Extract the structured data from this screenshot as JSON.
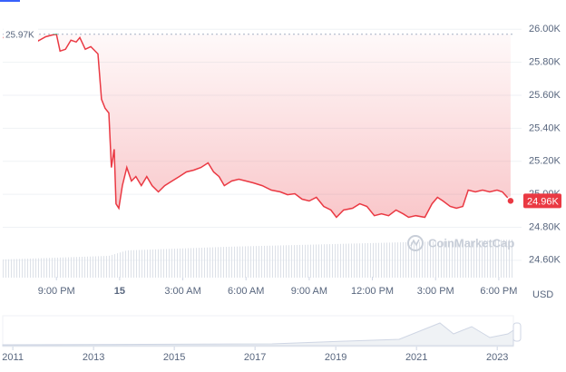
{
  "chart_data": {
    "type": "line",
    "color": "#ea3943",
    "up_color": "#16c784",
    "x": [
      18.47,
      19.2,
      19.97,
      20.14,
      20.49,
      20.79,
      21.0,
      21.17,
      21.43,
      21.69,
      21.94,
      22.11,
      22.37,
      22.63,
      22.97,
      23.14,
      23.31,
      23.49,
      23.61,
      23.74,
      23.83,
      23.96,
      24.13,
      24.34,
      24.56,
      24.77,
      25.03,
      25.29,
      25.54,
      25.84,
      26.14,
      26.49,
      26.83,
      27.17,
      27.52,
      27.86,
      28.2,
      28.46,
      28.72,
      28.97,
      29.32,
      29.66,
      30.0,
      30.34,
      30.77,
      31.2,
      31.63,
      31.97,
      32.32,
      32.66,
      33.0,
      33.34,
      33.69,
      34.03,
      34.29,
      34.63,
      35.06,
      35.4,
      35.74,
      36.09,
      36.43,
      36.77,
      37.12,
      37.46,
      37.72,
      38.06,
      38.49,
      38.83,
      39.09,
      39.35,
      39.69,
      39.99,
      40.29,
      40.55,
      40.89,
      41.23,
      41.57,
      41.92,
      42.17,
      42.56
    ],
    "values": [
      25950,
      25940,
      25960,
      25930,
      25955,
      25965,
      25970,
      25868,
      25879,
      25934,
      25923,
      25950,
      25879,
      25895,
      25851,
      25576,
      25521,
      25493,
      25162,
      25273,
      24942,
      24915,
      25052,
      25162,
      25080,
      25107,
      25052,
      25107,
      25052,
      25014,
      25052,
      25080,
      25107,
      25135,
      25146,
      25162,
      25190,
      25135,
      25107,
      25052,
      25080,
      25091,
      25080,
      25069,
      25052,
      25025,
      25014,
      24997,
      25003,
      24970,
      24959,
      24981,
      24926,
      24904,
      24860,
      24904,
      24915,
      24942,
      24926,
      24870,
      24881,
      24870,
      24904,
      24881,
      24860,
      24870,
      24860,
      24942,
      24981,
      24959,
      24926,
      24915,
      24926,
      25025,
      25014,
      25025,
      25014,
      25025,
      25014,
      24960
    ],
    "xlim": [
      18.45,
      42.65
    ],
    "xticks": [
      {
        "value": 21,
        "label": "9:00 PM"
      },
      {
        "value": 24,
        "label": "15"
      },
      {
        "value": 27,
        "label": "3:00 AM"
      },
      {
        "value": 30,
        "label": "6:00 AM"
      },
      {
        "value": 33,
        "label": "9:00 AM"
      },
      {
        "value": 36,
        "label": "12:00 PM"
      },
      {
        "value": 39,
        "label": "3:00 PM"
      },
      {
        "value": 42,
        "label": "6:00 PM"
      }
    ],
    "ylim": [
      24500,
      26150
    ],
    "yticks": [
      {
        "value": 24600,
        "label": "24.60K"
      },
      {
        "value": 24800,
        "label": "24.80K"
      },
      {
        "value": 25000,
        "label": "25.00K"
      },
      {
        "value": 25200,
        "label": "25.20K"
      },
      {
        "value": 25400,
        "label": "25.40K"
      },
      {
        "value": 25600,
        "label": "25.60K"
      },
      {
        "value": 25800,
        "label": "25.80K"
      },
      {
        "value": 26000,
        "label": "26.00K"
      }
    ],
    "baseline": {
      "value": 25970,
      "label": "25.97K"
    },
    "last": {
      "value": 24960,
      "label": "24.96K"
    },
    "unit": "USD",
    "watermark": "CoinMarketCap",
    "navigator": {
      "xlim": [
        2010.75,
        2023.4
      ],
      "xticks": [
        2011,
        2013,
        2015,
        2017,
        2019,
        2021,
        2023
      ]
    }
  }
}
